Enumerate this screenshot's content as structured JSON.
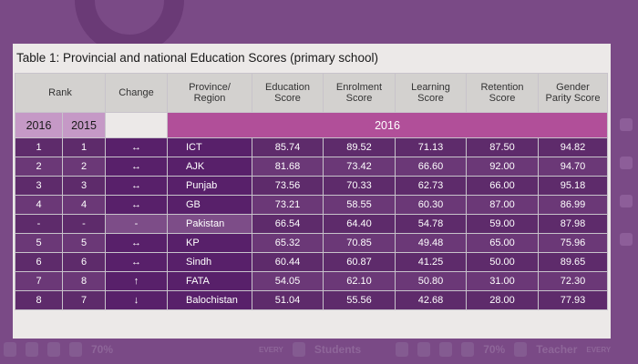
{
  "caption": "Table 1: Provincial and national Education Scores (primary school)",
  "headers": {
    "rank": "Rank",
    "change": "Change",
    "province_l1": "Province/",
    "province_l2": "Region",
    "education_l1": "Education",
    "education_l2": "Score",
    "enrolment_l1": "Enrolment",
    "enrolment_l2": "Score",
    "learning_l1": "Learning",
    "learning_l2": "Score",
    "retention_l1": "Retention",
    "retention_l2": "Score",
    "gender_l1": "Gender",
    "gender_l2": "Parity Score"
  },
  "subheaders": {
    "year1": "2016",
    "year2": "2015",
    "scores_year": "2016"
  },
  "rows": [
    {
      "r2016": "1",
      "r2015": "1",
      "change": "↔",
      "province": "ICT",
      "education": "85.74",
      "enrolment": "89.52",
      "learning": "71.13",
      "retention": "87.50",
      "gender": "94.82"
    },
    {
      "r2016": "2",
      "r2015": "2",
      "change": "↔",
      "province": "AJK",
      "education": "81.68",
      "enrolment": "73.42",
      "learning": "66.60",
      "retention": "92.00",
      "gender": "94.70"
    },
    {
      "r2016": "3",
      "r2015": "3",
      "change": "↔",
      "province": "Punjab",
      "education": "73.56",
      "enrolment": "70.33",
      "learning": "62.73",
      "retention": "66.00",
      "gender": "95.18"
    },
    {
      "r2016": "4",
      "r2015": "4",
      "change": "↔",
      "province": "GB",
      "education": "73.21",
      "enrolment": "58.55",
      "learning": "60.30",
      "retention": "87.00",
      "gender": "86.99"
    },
    {
      "r2016": "-",
      "r2015": "-",
      "change": "-",
      "province": "Pakistan",
      "education": "66.54",
      "enrolment": "64.40",
      "learning": "54.78",
      "retention": "59.00",
      "gender": "87.98"
    },
    {
      "r2016": "5",
      "r2015": "5",
      "change": "↔",
      "province": "KP",
      "education": "65.32",
      "enrolment": "70.85",
      "learning": "49.48",
      "retention": "65.00",
      "gender": "75.96"
    },
    {
      "r2016": "6",
      "r2015": "6",
      "change": "↔",
      "province": "Sindh",
      "education": "60.44",
      "enrolment": "60.87",
      "learning": "41.25",
      "retention": "50.00",
      "gender": "89.65"
    },
    {
      "r2016": "7",
      "r2015": "8",
      "change": "↑",
      "province": "FATA",
      "education": "54.05",
      "enrolment": "62.10",
      "learning": "50.80",
      "retention": "31.00",
      "gender": "72.30"
    },
    {
      "r2016": "8",
      "r2015": "7",
      "change": "↓",
      "province": "Balochistan",
      "education": "51.04",
      "enrolment": "55.56",
      "learning": "42.68",
      "retention": "28.00",
      "gender": "77.93"
    }
  ],
  "background_strip": {
    "left_text": "70%",
    "mid_text_1": "EVERY",
    "mid_text_2": "Students",
    "right_text_1": "70%",
    "right_text_2": "Teacher",
    "right_text_3": "EVERY"
  }
}
